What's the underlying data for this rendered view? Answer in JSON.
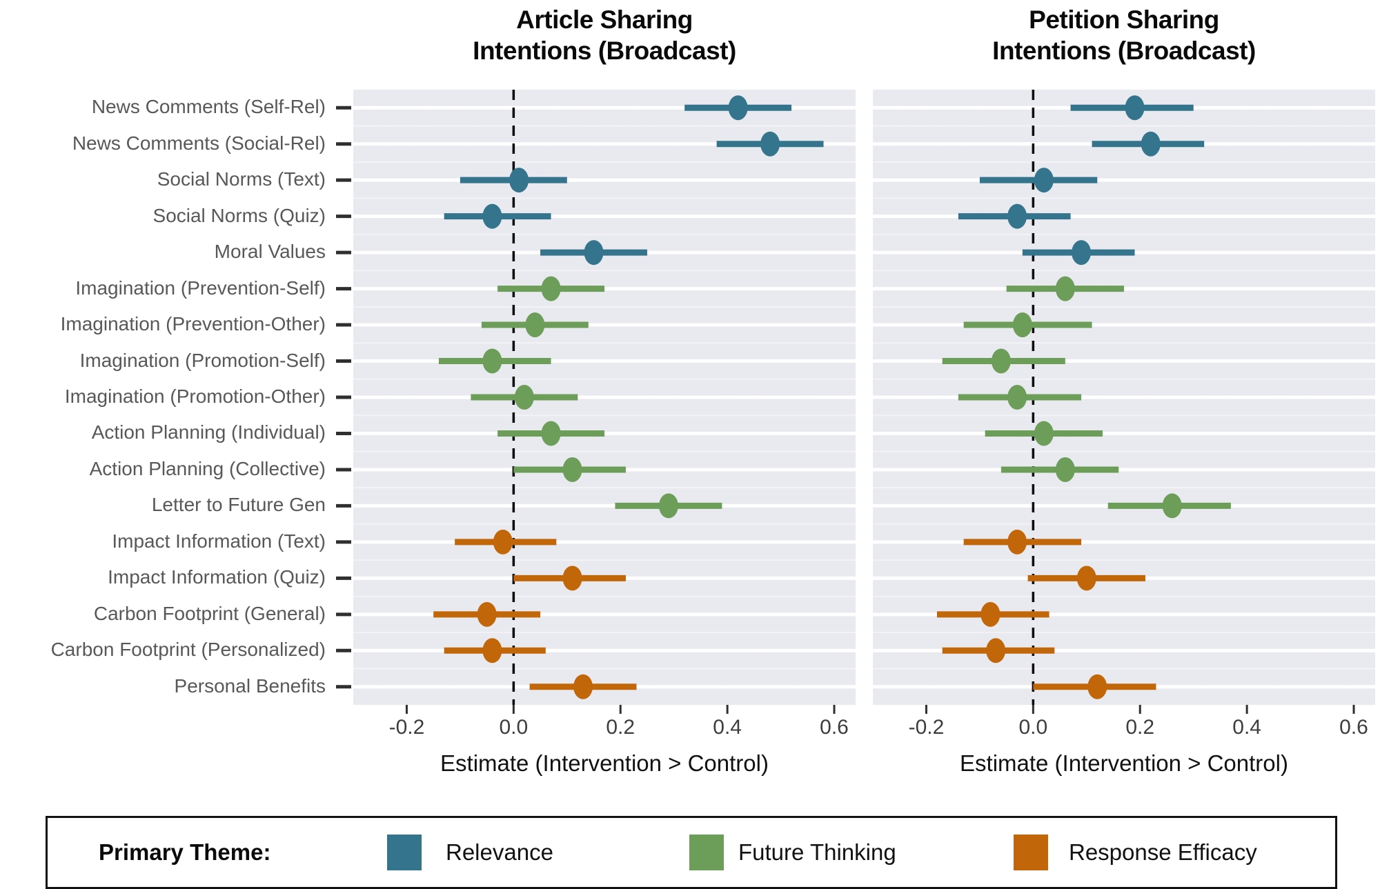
{
  "legend": {
    "title": "Primary Theme:",
    "items": [
      {
        "label": "Relevance",
        "color": "#35748D"
      },
      {
        "label": "Future Thinking",
        "color": "#6D9E59"
      },
      {
        "label": "Response Efficacy",
        "color": "#C1670A"
      }
    ]
  },
  "chart_data": {
    "type": "scatter",
    "subtype": "forest-plot (point estimates with 95% CI error bars, faceted)",
    "xlabel": "Estimate (Intervention > Control)",
    "xlim": [
      -0.3,
      0.64
    ],
    "xticks": [
      -0.2,
      0.0,
      0.2,
      0.4,
      0.6
    ],
    "xtick_labels": [
      "-0.2",
      "0.0",
      "0.2",
      "0.4",
      "0.6"
    ],
    "zero_reference_line": 0.0,
    "grid": "horizontal white gridlines on light gray panel",
    "legend_position": "bottom",
    "categories": [
      "News Comments (Self-Rel)",
      "News Comments (Social-Rel)",
      "Social Norms (Text)",
      "Social Norms (Quiz)",
      "Moral Values",
      "Imagination (Prevention-Self)",
      "Imagination (Prevention-Other)",
      "Imagination (Promotion-Self)",
      "Imagination (Promotion-Other)",
      "Action Planning (Individual)",
      "Action Planning (Collective)",
      "Letter to Future Gen",
      "Impact Information (Text)",
      "Impact Information (Quiz)",
      "Carbon Footprint (General)",
      "Carbon Footprint (Personalized)",
      "Personal Benefits"
    ],
    "category_themes": [
      "Relevance",
      "Relevance",
      "Relevance",
      "Relevance",
      "Relevance",
      "Future Thinking",
      "Future Thinking",
      "Future Thinking",
      "Future Thinking",
      "Future Thinking",
      "Future Thinking",
      "Future Thinking",
      "Response Efficacy",
      "Response Efficacy",
      "Response Efficacy",
      "Response Efficacy",
      "Response Efficacy"
    ],
    "theme_colors": {
      "Relevance": "#35748D",
      "Future Thinking": "#6D9E59",
      "Response Efficacy": "#C1670A"
    },
    "panels": [
      {
        "title": "Article Sharing Intentions (Broadcast)",
        "title_lines": [
          "Article Sharing",
          "Intentions (Broadcast)"
        ],
        "estimates": [
          0.42,
          0.48,
          0.01,
          -0.04,
          0.15,
          0.07,
          0.04,
          -0.04,
          0.02,
          0.07,
          0.11,
          0.29,
          -0.02,
          0.11,
          -0.05,
          -0.04,
          0.13
        ],
        "ci_low": [
          0.32,
          0.38,
          -0.1,
          -0.13,
          0.05,
          -0.03,
          -0.06,
          -0.14,
          -0.08,
          -0.03,
          0.0,
          0.19,
          -0.11,
          0.0,
          -0.15,
          -0.13,
          0.03
        ],
        "ci_high": [
          0.52,
          0.58,
          0.1,
          0.07,
          0.25,
          0.17,
          0.14,
          0.07,
          0.12,
          0.17,
          0.21,
          0.39,
          0.08,
          0.21,
          0.05,
          0.06,
          0.23
        ]
      },
      {
        "title": "Petition Sharing Intentions (Broadcast)",
        "title_lines": [
          "Petition Sharing",
          "Intentions (Broadcast)"
        ],
        "estimates": [
          0.19,
          0.22,
          0.02,
          -0.03,
          0.09,
          0.06,
          -0.02,
          -0.06,
          -0.03,
          0.02,
          0.06,
          0.26,
          -0.03,
          0.1,
          -0.08,
          -0.07,
          0.12
        ],
        "ci_low": [
          0.07,
          0.11,
          -0.1,
          -0.14,
          -0.02,
          -0.05,
          -0.13,
          -0.17,
          -0.14,
          -0.09,
          -0.06,
          0.14,
          -0.13,
          -0.01,
          -0.18,
          -0.17,
          0.0
        ],
        "ci_high": [
          0.3,
          0.32,
          0.12,
          0.07,
          0.19,
          0.17,
          0.11,
          0.06,
          0.09,
          0.13,
          0.16,
          0.37,
          0.09,
          0.21,
          0.03,
          0.04,
          0.23
        ]
      }
    ],
    "panel_background": "#E9E9F0"
  }
}
